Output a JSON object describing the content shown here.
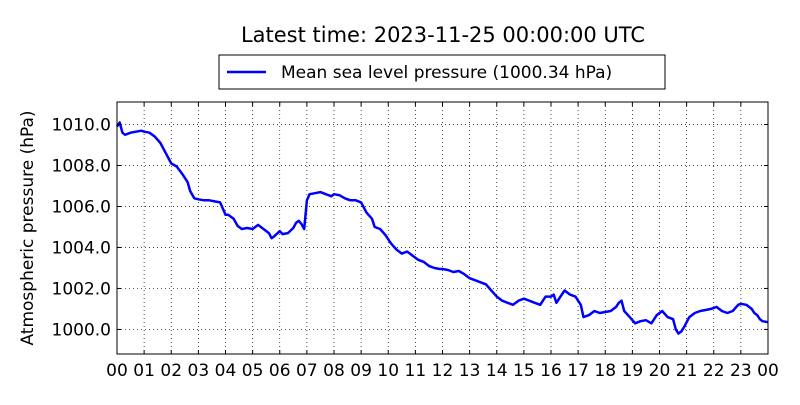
{
  "chart_data": {
    "type": "line",
    "title": "Latest time: 2023-11-25 00:00:00 UTC",
    "xlabel": "",
    "ylabel": "Atmospheric pressure (hPa)",
    "xlim": [
      0,
      24
    ],
    "ylim": [
      998.8,
      1011.1
    ],
    "grid": true,
    "legend_position": "top",
    "x_tick_labels": [
      "00",
      "01",
      "02",
      "03",
      "04",
      "05",
      "06",
      "07",
      "08",
      "09",
      "10",
      "11",
      "12",
      "13",
      "14",
      "15",
      "16",
      "17",
      "18",
      "19",
      "20",
      "21",
      "22",
      "23",
      "00"
    ],
    "y_ticks": [
      1000,
      1002,
      1004,
      1006,
      1008,
      1010
    ],
    "y_tick_labels": [
      "1000.0",
      "1002.0",
      "1004.0",
      "1006.0",
      "1008.0",
      "1010.0"
    ],
    "series": [
      {
        "name": "Mean sea level pressure (1000.34 hPa)",
        "color": "#0000ff",
        "x": [
          0.0,
          0.1,
          0.2,
          0.3,
          0.5,
          0.7,
          0.9,
          1.0,
          1.2,
          1.4,
          1.6,
          1.8,
          2.0,
          2.2,
          2.4,
          2.6,
          2.7,
          2.85,
          3.0,
          3.2,
          3.4,
          3.6,
          3.8,
          3.9,
          4.0,
          4.1,
          4.3,
          4.45,
          4.6,
          4.8,
          5.0,
          5.1,
          5.2,
          5.4,
          5.6,
          5.7,
          5.8,
          6.0,
          6.1,
          6.3,
          6.5,
          6.6,
          6.7,
          6.8,
          6.9,
          7.0,
          7.1,
          7.3,
          7.5,
          7.7,
          7.9,
          8.0,
          8.2,
          8.4,
          8.6,
          8.8,
          9.0,
          9.2,
          9.4,
          9.5,
          9.7,
          9.9,
          10.1,
          10.3,
          10.5,
          10.7,
          10.9,
          11.1,
          11.3,
          11.5,
          11.7,
          11.9,
          12.0,
          12.2,
          12.4,
          12.6,
          12.8,
          13.0,
          13.2,
          13.4,
          13.6,
          13.8,
          14.0,
          14.2,
          14.4,
          14.6,
          14.8,
          15.0,
          15.2,
          15.4,
          15.6,
          15.8,
          16.0,
          16.1,
          16.2,
          16.3,
          16.4,
          16.5,
          16.7,
          16.9,
          17.0,
          17.1,
          17.2,
          17.4,
          17.6,
          17.8,
          18.0,
          18.2,
          18.4,
          18.5,
          18.6,
          18.7,
          18.9,
          19.1,
          19.3,
          19.5,
          19.7,
          19.9,
          20.1,
          20.3,
          20.5,
          20.6,
          20.7,
          20.8,
          20.9,
          21.1,
          21.3,
          21.5,
          21.7,
          21.9,
          22.1,
          22.3,
          22.5,
          22.7,
          22.9,
          23.0,
          23.2,
          23.4,
          23.5,
          23.6,
          23.7,
          23.8,
          24.0
        ],
        "y": [
          1009.9,
          1010.1,
          1009.6,
          1009.5,
          1009.6,
          1009.65,
          1009.7,
          1009.65,
          1009.6,
          1009.4,
          1009.1,
          1008.6,
          1008.1,
          1007.95,
          1007.6,
          1007.2,
          1006.75,
          1006.4,
          1006.35,
          1006.3,
          1006.3,
          1006.25,
          1006.2,
          1005.9,
          1005.6,
          1005.6,
          1005.4,
          1005.05,
          1004.9,
          1004.95,
          1004.9,
          1005.0,
          1005.1,
          1004.9,
          1004.7,
          1004.45,
          1004.55,
          1004.8,
          1004.65,
          1004.7,
          1004.95,
          1005.2,
          1005.3,
          1005.15,
          1004.9,
          1006.3,
          1006.6,
          1006.65,
          1006.7,
          1006.6,
          1006.5,
          1006.6,
          1006.55,
          1006.4,
          1006.3,
          1006.3,
          1006.2,
          1005.7,
          1005.4,
          1005.0,
          1004.9,
          1004.6,
          1004.2,
          1003.9,
          1003.7,
          1003.8,
          1003.6,
          1003.4,
          1003.3,
          1003.1,
          1003.0,
          1002.95,
          1002.95,
          1002.9,
          1002.8,
          1002.85,
          1002.7,
          1002.5,
          1002.4,
          1002.3,
          1002.2,
          1001.9,
          1001.6,
          1001.4,
          1001.3,
          1001.2,
          1001.4,
          1001.5,
          1001.4,
          1001.3,
          1001.2,
          1001.6,
          1001.6,
          1001.7,
          1001.3,
          1001.5,
          1001.7,
          1001.9,
          1001.7,
          1001.6,
          1001.4,
          1001.2,
          1000.6,
          1000.7,
          1000.9,
          1000.8,
          1000.85,
          1000.9,
          1001.1,
          1001.3,
          1001.4,
          1000.9,
          1000.6,
          1000.3,
          1000.4,
          1000.45,
          1000.3,
          1000.7,
          1000.9,
          1000.6,
          1000.5,
          1000.0,
          999.8,
          999.9,
          1000.1,
          1000.6,
          1000.8,
          1000.9,
          1000.95,
          1001.0,
          1001.1,
          1000.9,
          1000.8,
          1000.9,
          1001.2,
          1001.25,
          1001.2,
          1001.0,
          1000.8,
          1000.7,
          1000.5,
          1000.4,
          1000.35
        ]
      }
    ]
  }
}
